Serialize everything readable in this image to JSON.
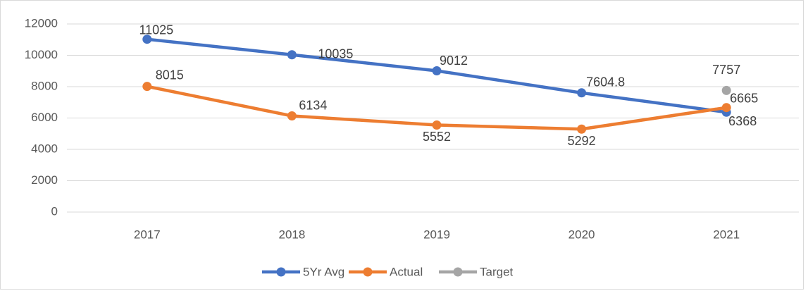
{
  "chart_data": {
    "type": "line",
    "categories": [
      "2017",
      "2018",
      "2019",
      "2020",
      "2021"
    ],
    "series": [
      {
        "name": "5Yr Avg",
        "color": "#4472c4",
        "values": [
          11025,
          10035,
          9012,
          7604.8,
          6368
        ]
      },
      {
        "name": "Actual",
        "color": "#ed7d31",
        "values": [
          8015,
          6134,
          5552,
          5292,
          6665
        ]
      },
      {
        "name": "Target",
        "color": "#a5a5a5",
        "values": [
          null,
          null,
          null,
          null,
          7757
        ]
      }
    ],
    "ylim": [
      0,
      12000
    ],
    "yticks": [
      0,
      2000,
      4000,
      6000,
      8000,
      10000,
      12000
    ],
    "grid": true,
    "legend": "bottom"
  }
}
